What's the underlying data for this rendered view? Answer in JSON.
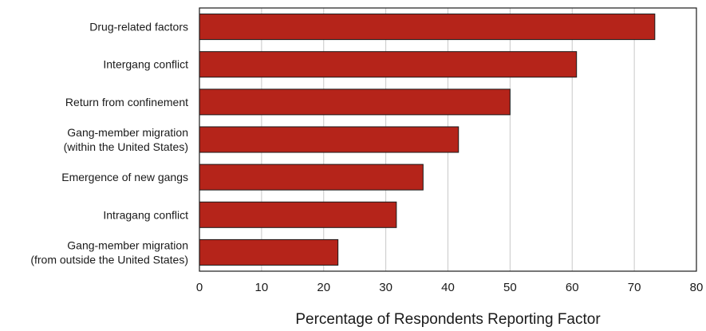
{
  "chart_data": {
    "type": "bar",
    "orientation": "horizontal",
    "categories": [
      [
        "Drug-related factors"
      ],
      [
        "Intergang conflict"
      ],
      [
        "Return from confinement"
      ],
      [
        "Gang-member migration",
        "(within the United States)"
      ],
      [
        "Emergence of new gangs"
      ],
      [
        "Intragang conflict"
      ],
      [
        "Gang-member migration",
        "(from outside the United States)"
      ]
    ],
    "values": [
      73.3,
      60.7,
      50.0,
      41.7,
      36.0,
      31.7,
      22.3
    ],
    "xlabel": "Percentage of Respondents Reporting Factor",
    "ylabel": "",
    "xlim": [
      0,
      80
    ],
    "xticks": [
      "0",
      "10",
      "20",
      "30",
      "40",
      "50",
      "60",
      "70",
      "80"
    ],
    "grid": "vertical",
    "bar_color": "#b5241a"
  }
}
